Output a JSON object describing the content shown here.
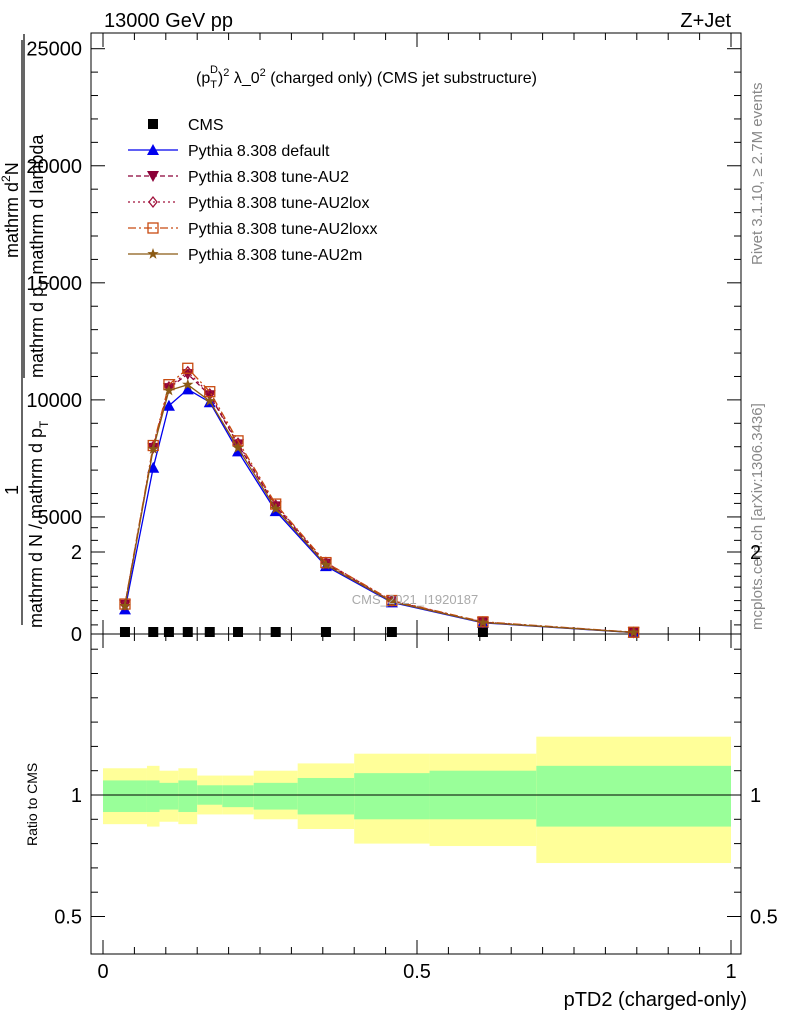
{
  "header": {
    "energy_label": "13000 GeV pp",
    "process_label": "Z+Jet"
  },
  "title": {
    "prefix": "(p",
    "sub": "T",
    "sup_d": "D",
    "sup2": "2",
    "mid": " λ_0",
    "sup2b": "2",
    "suffix": " (charged only) (CMS jet substructure)"
  },
  "side_labels": {
    "rivet": "Rivet 3.1.10, ≥ 2.7M events",
    "mcplots": "mcplots.cern.ch [arXiv:1306.3436]"
  },
  "ylabel_main": {
    "one": "1",
    "den_a": "mathrm d N / mathrm d p",
    "den_sub": "T",
    "num": "mathrm d",
    "num_sup": "2",
    "num_n": "N",
    "den_b": "mathrm d p",
    "den_b_sub": "T",
    "den_b_rest": " mathrm d lambda"
  },
  "ylabel_ratio": "Ratio to CMS",
  "xlabel": "pTD2 (charged-only)",
  "watermark": "CMS_2021_I1920187",
  "colors": {
    "cms": "#000000",
    "default": "#0000ee",
    "au2": "#8b0038",
    "au2lox": "#a0103a",
    "au2loxx": "#c84a10",
    "au2m": "#8b5a14",
    "band_inner": "#99ff99",
    "band_outer": "#ffff99"
  },
  "chart_data": {
    "type": "line",
    "xlim": [
      0,
      1
    ],
    "ylim_main": [
      0,
      25500
    ],
    "ylim_ratio": [
      0.4,
      2.3
    ],
    "x_ticks": [
      "0",
      "0.5",
      "1"
    ],
    "y_ticks_main": [
      "0",
      "5000",
      "10000",
      "15000",
      "20000",
      "25000"
    ],
    "y_ticks_ratio": [
      "0.5",
      "1",
      "2"
    ],
    "x": [
      0.035,
      0.08,
      0.105,
      0.135,
      0.17,
      0.215,
      0.275,
      0.355,
      0.46,
      0.605,
      0.845
    ],
    "series": [
      {
        "name": "CMS",
        "key": "cms",
        "marker": "square",
        "dash": "",
        "values": [
          0,
          0,
          0,
          0,
          0,
          0,
          0,
          0,
          0,
          0,
          0
        ]
      },
      {
        "name": "Pythia 8.308 default",
        "key": "default",
        "marker": "triangle",
        "dash": "",
        "values": [
          1050,
          7100,
          9750,
          10450,
          9900,
          7800,
          5250,
          2900,
          1350,
          480,
          60
        ]
      },
      {
        "name": "Pythia 8.308 tune-AU2",
        "key": "au2",
        "marker": "triangle-down",
        "dash": "5,3",
        "values": [
          1250,
          7950,
          10500,
          11100,
          10200,
          8100,
          5450,
          3000,
          1400,
          500,
          70
        ]
      },
      {
        "name": "Pythia 8.308 tune-AU2lox",
        "key": "au2lox",
        "marker": "diamond",
        "dash": "2,3",
        "values": [
          1250,
          8000,
          10550,
          11200,
          10250,
          8150,
          5500,
          3050,
          1420,
          510,
          70
        ]
      },
      {
        "name": "Pythia 8.308 tune-AU2loxx",
        "key": "au2loxx",
        "marker": "open-square",
        "dash": "8,3,2,3",
        "values": [
          1280,
          8050,
          10650,
          11350,
          10350,
          8250,
          5550,
          3050,
          1430,
          520,
          75
        ]
      },
      {
        "name": "Pythia 8.308 tune-AU2m",
        "key": "au2m",
        "marker": "star",
        "dash": "",
        "values": [
          1200,
          7900,
          10400,
          10650,
          9950,
          7950,
          5350,
          2950,
          1380,
          490,
          65
        ]
      }
    ],
    "ratio_bands": [
      {
        "x0": 0.0,
        "x1": 0.07,
        "inner_lo": 0.93,
        "inner_hi": 1.06,
        "outer_lo": 0.88,
        "outer_hi": 1.11
      },
      {
        "x0": 0.07,
        "x1": 0.09,
        "inner_lo": 0.93,
        "inner_hi": 1.06,
        "outer_lo": 0.87,
        "outer_hi": 1.12
      },
      {
        "x0": 0.09,
        "x1": 0.12,
        "inner_lo": 0.94,
        "inner_hi": 1.05,
        "outer_lo": 0.89,
        "outer_hi": 1.1
      },
      {
        "x0": 0.12,
        "x1": 0.15,
        "inner_lo": 0.93,
        "inner_hi": 1.06,
        "outer_lo": 0.88,
        "outer_hi": 1.11
      },
      {
        "x0": 0.15,
        "x1": 0.19,
        "inner_lo": 0.96,
        "inner_hi": 1.04,
        "outer_lo": 0.92,
        "outer_hi": 1.08
      },
      {
        "x0": 0.19,
        "x1": 0.24,
        "inner_lo": 0.95,
        "inner_hi": 1.04,
        "outer_lo": 0.92,
        "outer_hi": 1.08
      },
      {
        "x0": 0.24,
        "x1": 0.31,
        "inner_lo": 0.94,
        "inner_hi": 1.05,
        "outer_lo": 0.9,
        "outer_hi": 1.1
      },
      {
        "x0": 0.31,
        "x1": 0.4,
        "inner_lo": 0.92,
        "inner_hi": 1.07,
        "outer_lo": 0.86,
        "outer_hi": 1.13
      },
      {
        "x0": 0.4,
        "x1": 0.52,
        "inner_lo": 0.9,
        "inner_hi": 1.09,
        "outer_lo": 0.8,
        "outer_hi": 1.17
      },
      {
        "x0": 0.52,
        "x1": 0.69,
        "inner_lo": 0.9,
        "inner_hi": 1.1,
        "outer_lo": 0.79,
        "outer_hi": 1.17
      },
      {
        "x0": 0.69,
        "x1": 1.0,
        "inner_lo": 0.87,
        "inner_hi": 1.12,
        "outer_lo": 0.72,
        "outer_hi": 1.24
      }
    ]
  }
}
